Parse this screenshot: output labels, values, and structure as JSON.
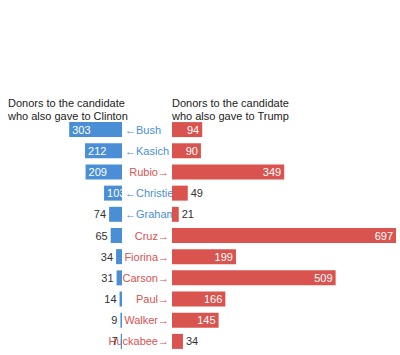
{
  "chart_data": {
    "type": "bar",
    "orientation": "horizontal",
    "categories": [
      "←Bush",
      "←Kasich",
      "Rubio→",
      "←Christie",
      "←Graham",
      "Cruz→",
      "Fiorina→",
      "Carson→",
      "Paul→",
      "Walker→",
      "Huckabee→"
    ],
    "series": [
      {
        "name": "Donors to the candidate who also gave to Clinton",
        "color": "#4a8fd5",
        "values": [
          303,
          212,
          209,
          103,
          74,
          65,
          34,
          31,
          14,
          9,
          7
        ]
      },
      {
        "name": "Donors to the candidate who also gave to Trump",
        "color": "#d9534f",
        "values": [
          94,
          90,
          349,
          49,
          21,
          697,
          199,
          509,
          166,
          145,
          34
        ]
      }
    ],
    "xlim": [
      0,
      700
    ],
    "data_labels": true,
    "tick_labels": "y",
    "grid": false
  }
}
